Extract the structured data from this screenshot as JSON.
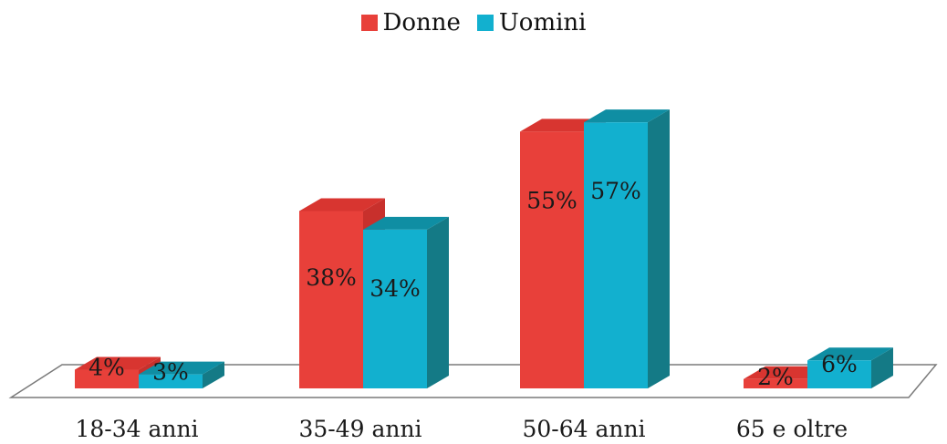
{
  "chart_data": {
    "type": "bar",
    "categories": [
      "18-34 anni",
      "35-49 anni",
      "50-64 anni",
      "65 e oltre"
    ],
    "series": [
      {
        "name": "Donne",
        "values": [
          4,
          38,
          55,
          2
        ],
        "labels": [
          "4%",
          "38%",
          "55%",
          "2%"
        ],
        "color": "#e8403a",
        "side_color": "#c8302c",
        "top_color": "#d83530"
      },
      {
        "name": "Uomini",
        "values": [
          3,
          34,
          57,
          6
        ],
        "labels": [
          "3%",
          "34%",
          "57%",
          "6%"
        ],
        "color": "#12b0cf",
        "side_color": "#147a86",
        "top_color": "#0f8ea3"
      }
    ],
    "title": "",
    "xlabel": "",
    "ylabel": "",
    "ylim": [
      0,
      60
    ],
    "grid": false,
    "legend": "top-center",
    "style": "3d"
  }
}
